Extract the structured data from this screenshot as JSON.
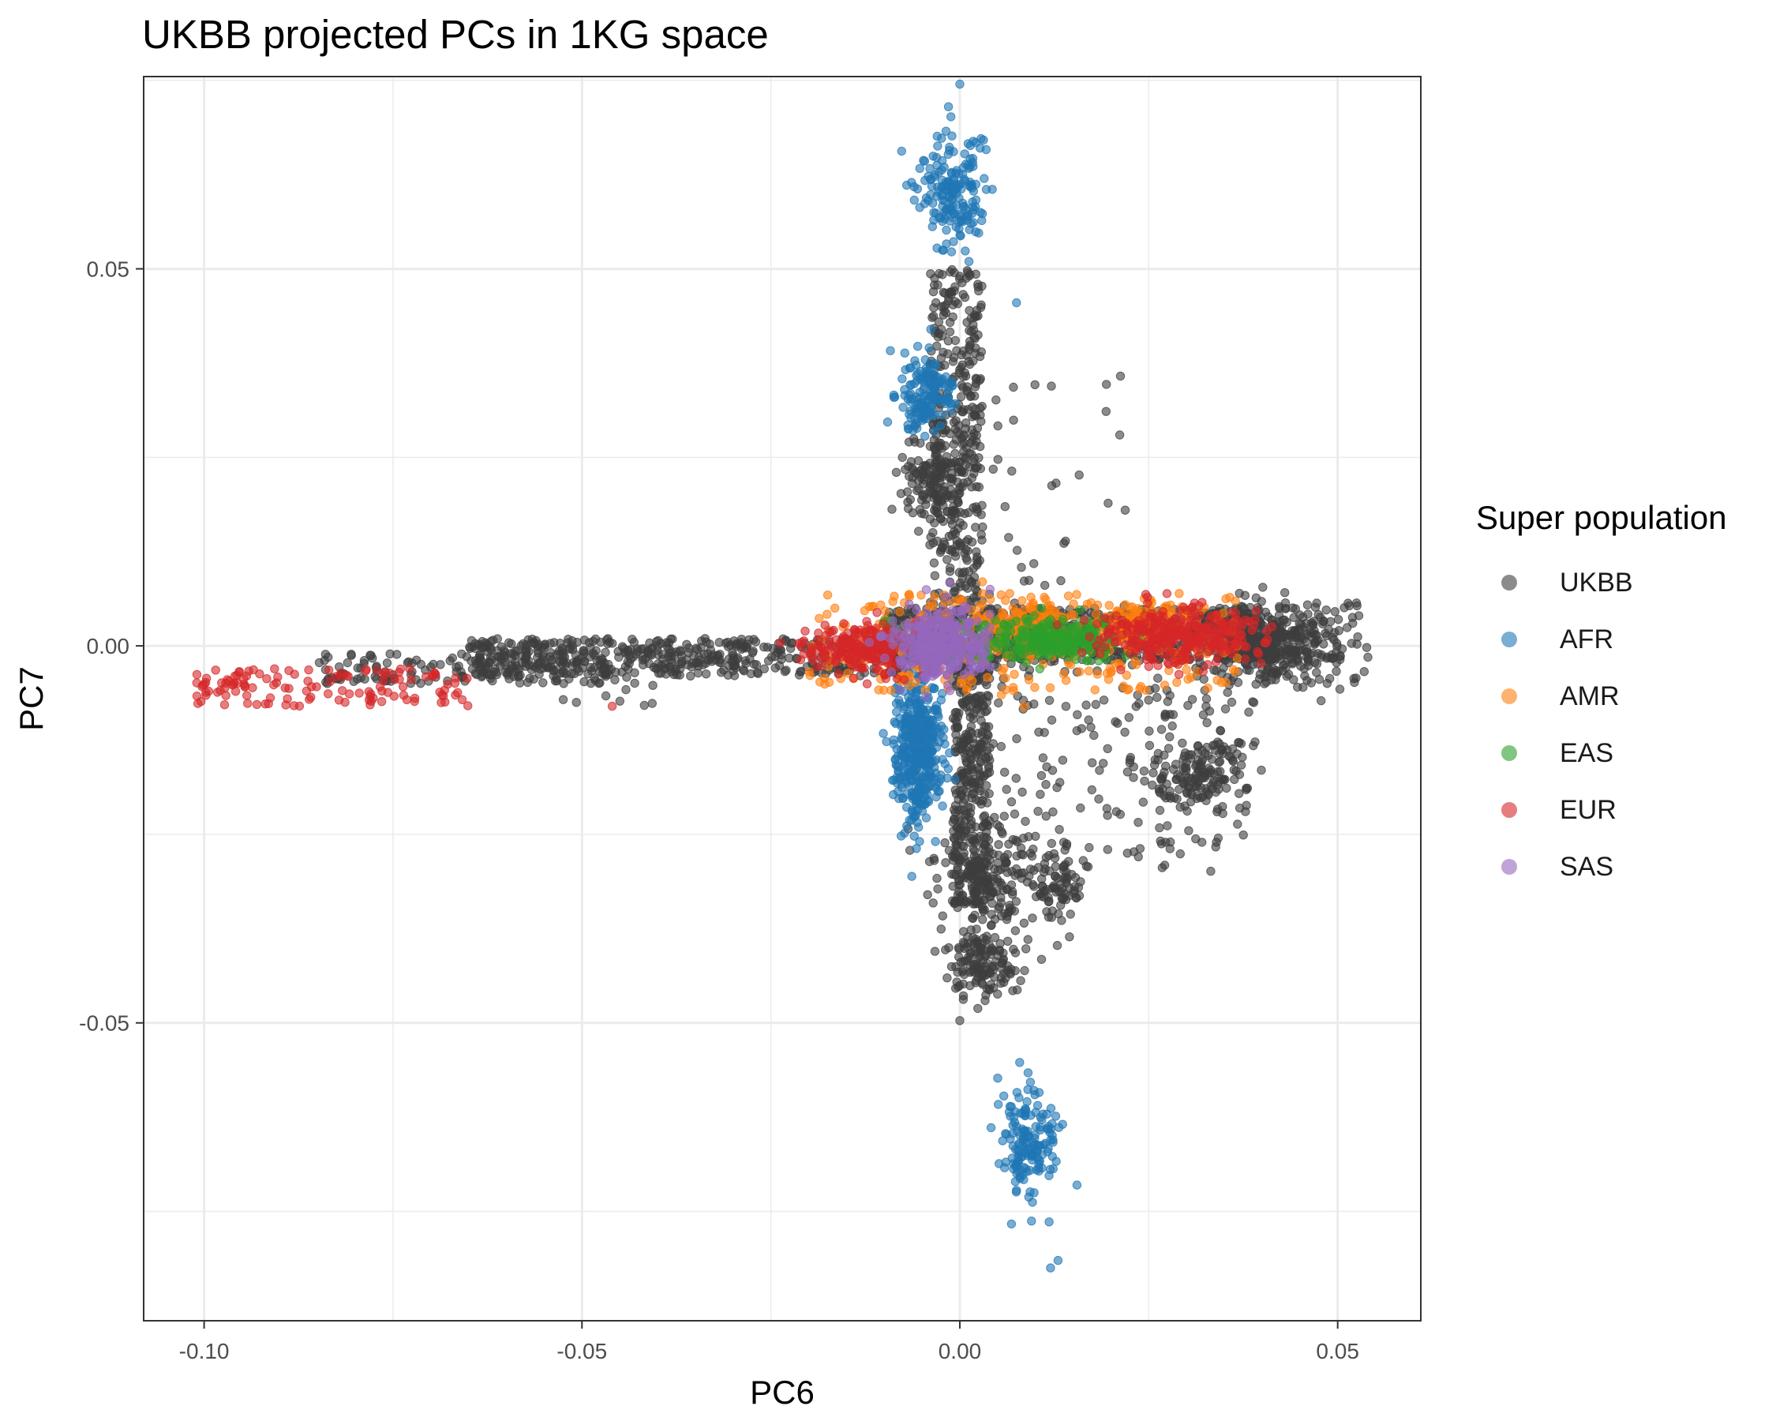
{
  "chart_data": {
    "type": "scatter",
    "title": "UKBB projected PCs in 1KG space",
    "xlabel": "PC6",
    "ylabel": "PC7",
    "xlim": [
      -0.108,
      0.061
    ],
    "ylim": [
      -0.0895,
      0.0755
    ],
    "x_ticks": [
      -0.1,
      -0.05,
      0.0,
      0.05
    ],
    "x_tick_labels": [
      "-0.10",
      "-0.05",
      "0.00",
      "0.05"
    ],
    "y_ticks": [
      -0.05,
      0.0,
      0.05
    ],
    "y_tick_labels": [
      "-0.05",
      "0.00",
      "0.05"
    ],
    "grid": true,
    "legend": {
      "title": "Super population",
      "position": "right",
      "entries": [
        "UKBB",
        "AFR",
        "AMR",
        "EAS",
        "EUR",
        "SAS"
      ]
    },
    "series": [
      {
        "name": "UKBB",
        "color": "#3d3d3d",
        "clusters": [
          {
            "x": [
              -0.065,
              -0.003
            ],
            "y": [
              -0.004,
              0.001
            ],
            "n": 520,
            "dist": "uniform"
          },
          {
            "x": [
              -0.085,
              -0.045
            ],
            "y": [
              -0.005,
              -0.001
            ],
            "n": 160,
            "dist": "uniform"
          },
          {
            "x": [
              -0.01,
              0.04
            ],
            "y": [
              -0.002,
              0.005
            ],
            "n": 700,
            "dist": "uniform"
          },
          {
            "cx": 0.041,
            "cy": 0.0,
            "sx": 0.004,
            "sy": 0.0025,
            "n": 320
          },
          {
            "x": [
              0.036,
              0.053
            ],
            "y": [
              -0.005,
              0.006
            ],
            "n": 110,
            "dist": "uniform"
          },
          {
            "x": [
              -0.004,
              0.003
            ],
            "y": [
              0.003,
              0.05
            ],
            "n": 380,
            "dist": "uniform"
          },
          {
            "cx": -0.0035,
            "cy": 0.022,
            "sx": 0.002,
            "sy": 0.003,
            "n": 140
          },
          {
            "x": [
              -0.001,
              0.004
            ],
            "y": [
              -0.035,
              -0.002
            ],
            "n": 360,
            "dist": "uniform"
          },
          {
            "cx": 0.004,
            "cy": -0.031,
            "sx": 0.004,
            "sy": 0.003,
            "n": 160
          },
          {
            "cx": 0.003,
            "cy": -0.042,
            "sx": 0.0025,
            "sy": 0.0025,
            "n": 150
          },
          {
            "cx": 0.03,
            "cy": -0.018,
            "sx": 0.003,
            "sy": 0.002,
            "n": 90
          },
          {
            "cx": 0.034,
            "cy": -0.015,
            "sx": 0.002,
            "sy": 0.002,
            "n": 50
          },
          {
            "cx": 0.0135,
            "cy": -0.032,
            "sx": 0.002,
            "sy": 0.0025,
            "n": 70
          },
          {
            "x": [
              0.003,
              0.04
            ],
            "y": [
              -0.03,
              -0.002
            ],
            "n": 200,
            "dist": "uniform"
          },
          {
            "x": [
              0.001,
              0.022
            ],
            "y": [
              0.002,
              0.036
            ],
            "n": 40,
            "dist": "uniform"
          },
          {
            "x": [
              -0.06,
              -0.04
            ],
            "y": [
              -0.008,
              -0.004
            ],
            "n": 15,
            "dist": "uniform"
          }
        ],
        "points": [
          [
            0.0,
            -0.0497
          ],
          [
            0.052,
            0.003
          ],
          [
            0.054,
            -0.0015
          ]
        ]
      },
      {
        "name": "AFR",
        "color": "#1f77b4",
        "clusters": [
          {
            "cx": -0.001,
            "cy": 0.0605,
            "sx": 0.0022,
            "sy": 0.0035,
            "n": 180
          },
          {
            "cx": -0.0045,
            "cy": 0.0335,
            "sx": 0.0018,
            "sy": 0.0025,
            "n": 150
          },
          {
            "cx": -0.0055,
            "cy": -0.0135,
            "sx": 0.0015,
            "sy": 0.005,
            "n": 420
          },
          {
            "cx": 0.009,
            "cy": -0.066,
            "sx": 0.0018,
            "sy": 0.0038,
            "n": 160
          }
        ],
        "points": [
          [
            0.0,
            0.0745
          ],
          [
            -0.0015,
            0.0715
          ],
          [
            0.0075,
            0.0455
          ],
          [
            0.0155,
            -0.0715
          ],
          [
            0.013,
            -0.0815
          ],
          [
            0.012,
            -0.0825
          ]
        ]
      },
      {
        "name": "AMR",
        "color": "#ff7f0e",
        "clusters": [
          {
            "x": [
              -0.02,
              0.037
            ],
            "y": [
              -0.006,
              0.007
            ],
            "n": 330,
            "dist": "uniform"
          },
          {
            "cx": 0.0085,
            "cy": 0.0025,
            "sx": 0.004,
            "sy": 0.0015,
            "n": 120
          },
          {
            "cx": 0.024,
            "cy": 0.003,
            "sx": 0.003,
            "sy": 0.0015,
            "n": 110
          }
        ],
        "points": [
          [
            0.003,
            0.0085
          ],
          [
            0.0055,
            -0.0065
          ],
          [
            0.0085,
            -0.008
          ]
        ]
      },
      {
        "name": "EAS",
        "color": "#2ca02c",
        "clusters": [
          {
            "cx": 0.013,
            "cy": 0.001,
            "sx": 0.0045,
            "sy": 0.0015,
            "n": 220
          },
          {
            "x": [
              -0.012,
              0.02
            ],
            "y": [
              -0.002,
              0.004
            ],
            "n": 50,
            "dist": "uniform"
          }
        ],
        "points": []
      },
      {
        "name": "EUR",
        "color": "#d62728",
        "clusters": [
          {
            "x": [
              -0.101,
              -0.065
            ],
            "y": [
              -0.008,
              -0.003
            ],
            "n": 130,
            "dist": "uniform"
          },
          {
            "cx": -0.013,
            "cy": -0.0005,
            "sx": 0.004,
            "sy": 0.0018,
            "n": 220
          },
          {
            "cx": 0.029,
            "cy": 0.0015,
            "sx": 0.0055,
            "sy": 0.0018,
            "n": 330
          }
        ],
        "points": [
          [
            -0.046,
            -0.008
          ]
        ]
      },
      {
        "name": "SAS",
        "color": "#9467bd",
        "clusters": [
          {
            "cx": -0.0025,
            "cy": 0.0,
            "sx": 0.003,
            "sy": 0.0022,
            "n": 320
          }
        ],
        "points": [
          [
            0.004,
            0.0075
          ],
          [
            0.001,
            0.005
          ]
        ]
      }
    ]
  }
}
